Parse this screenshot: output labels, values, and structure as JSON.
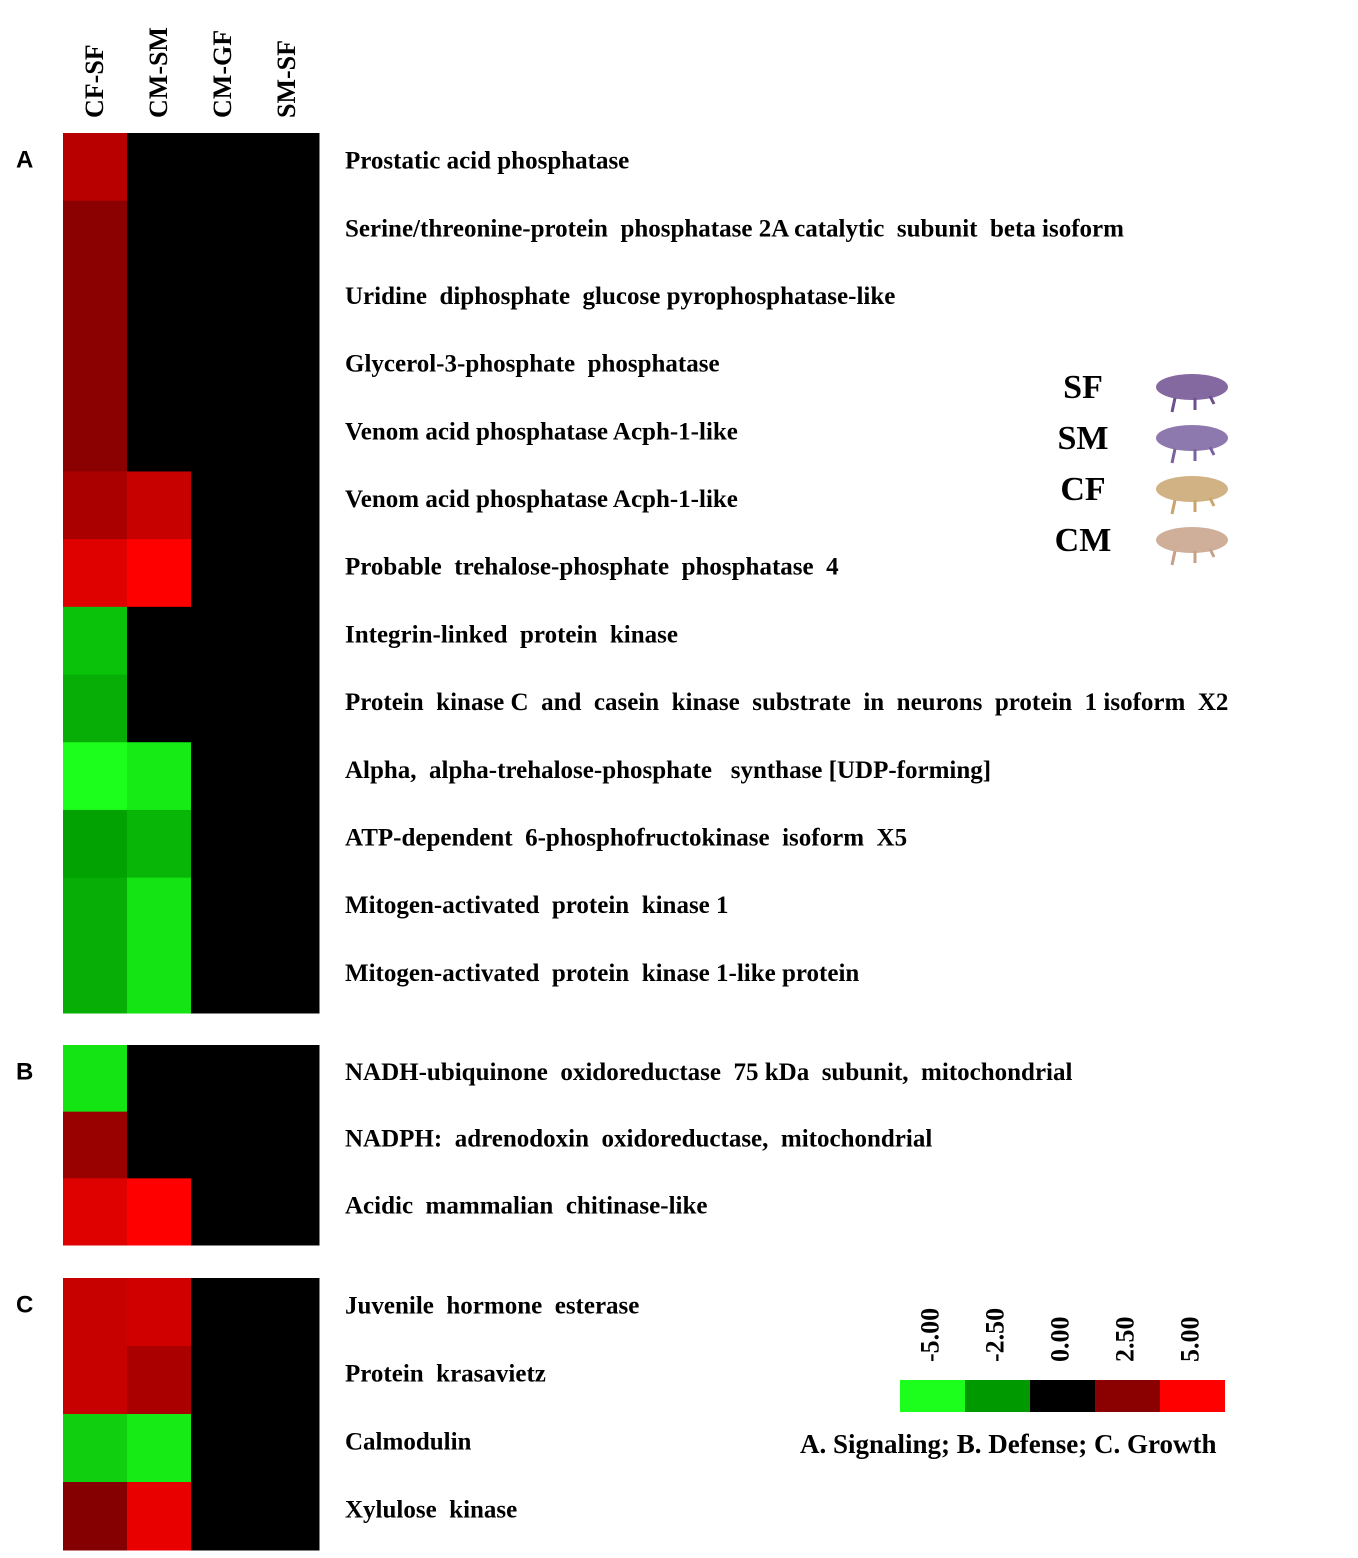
{
  "chart_data": {
    "type": "heatmap",
    "columns": [
      "CF-SF",
      "CM-SM",
      "CM-GF",
      "SM-SF"
    ],
    "panels": [
      {
        "label": "A",
        "rows": [
          "Prostatic acid phosphatase",
          "Serine/threonine-protein  phosphatase 2A catalytic  subunit  beta isoform",
          "Uridine  diphosphate  glucose pyrophosphatase-like",
          "Glycerol-3-phosphate  phosphatase",
          "Venom acid phosphatase Acph-1-like",
          "Venom acid phosphatase Acph-1-like",
          "Probable  trehalose-phosphate  phosphatase  4",
          "Integrin-linked  protein  kinase",
          "Protein  kinase C  and  casein  kinase  substrate  in  neurons  protein  1 isoform  X2",
          "Alpha,  alpha-trehalose-phosphate   synthase [UDP-forming]",
          "ATP-dependent  6-phosphofructokinase  isoform  X5",
          "Mitogen-activated  protein  kinase 1",
          "Mitogen-activated  protein  kinase 1-like protein"
        ],
        "values": [
          [
            3.5,
            0,
            0,
            0
          ],
          [
            2.5,
            0,
            0,
            0
          ],
          [
            2.5,
            0,
            0,
            0
          ],
          [
            2.5,
            0,
            0,
            0
          ],
          [
            2.5,
            0,
            0,
            0
          ],
          [
            3.2,
            3.8,
            0,
            0
          ],
          [
            4.3,
            5,
            0,
            0
          ],
          [
            -3.5,
            0,
            0,
            0
          ],
          [
            -3,
            0,
            0,
            0
          ],
          [
            -5,
            -4.5,
            0,
            0
          ],
          [
            -2.7,
            -3.2,
            0,
            0
          ],
          [
            -3,
            -4.3,
            0,
            0
          ],
          [
            -3,
            -4.3,
            0,
            0
          ]
        ]
      },
      {
        "label": "B",
        "rows": [
          "NADH-ubiquinone  oxidoreductase  75 kDa  subunit,  mitochondrial",
          "NADPH:  adrenodoxin  oxidoreductase,  mitochondrial",
          "Acidic  mammalian  chitinase-like"
        ],
        "values": [
          [
            -4.3,
            0,
            0,
            0
          ],
          [
            2.8,
            0,
            0,
            0
          ],
          [
            4.3,
            5,
            0,
            0
          ]
        ]
      },
      {
        "label": "C",
        "rows": [
          "Juvenile  hormone  esterase",
          "Protein  krasavietz",
          "Calmodulin",
          "Xylulose  kinase"
        ],
        "values": [
          [
            3.8,
            4,
            0,
            0
          ],
          [
            3.8,
            3.2,
            0,
            0
          ],
          [
            -3.8,
            -4.5,
            0,
            0
          ],
          [
            2.4,
            4.5,
            0,
            0
          ]
        ]
      }
    ],
    "colorbar": {
      "ticks": [
        {
          "value": -5,
          "label": "-5.00"
        },
        {
          "value": -2.5,
          "label": "-2.50"
        },
        {
          "value": 0,
          "label": "0.00"
        },
        {
          "value": 2.5,
          "label": "2.50"
        },
        {
          "value": 5,
          "label": "5.00"
        }
      ],
      "colors": [
        "#1cff1c",
        "#009a00",
        "#000000",
        "#8b0000",
        "#ff0000"
      ]
    },
    "caption": "A. Signaling;  B. Defense; C. Growth",
    "specimens": [
      {
        "label": "SF",
        "color": "#6e4f8f"
      },
      {
        "label": "SM",
        "color": "#7a62a0"
      },
      {
        "label": "CF",
        "color": "#c9a56e"
      },
      {
        "label": "CM",
        "color": "#c7a088"
      }
    ]
  }
}
